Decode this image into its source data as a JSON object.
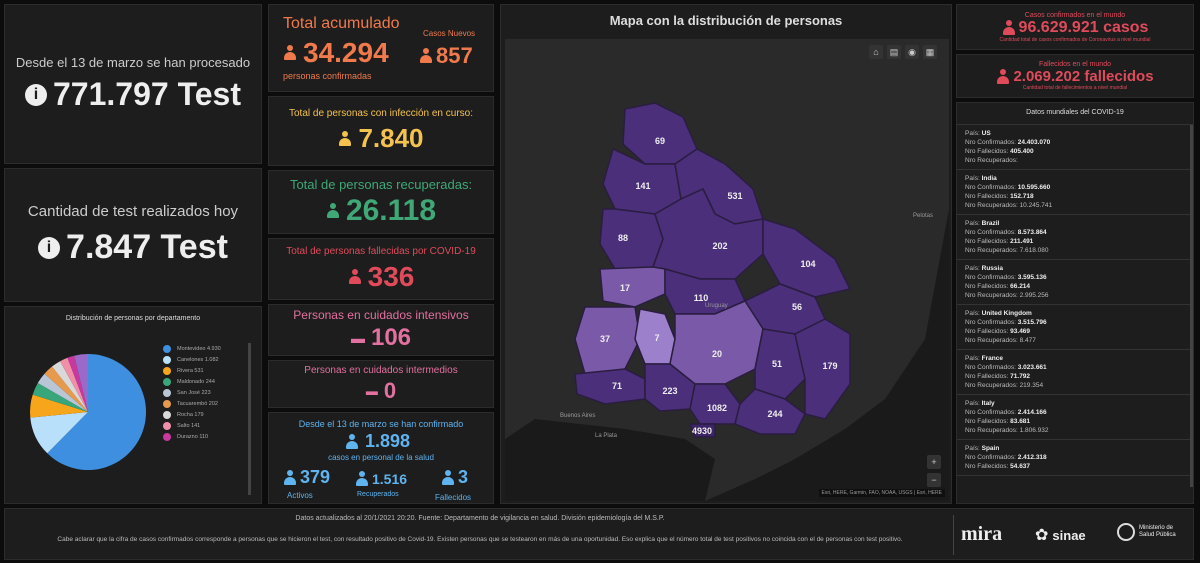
{
  "tests_total": {
    "caption": "Desde el 13 de marzo se han procesado",
    "value": "771.797 Test"
  },
  "tests_today": {
    "caption": "Cantidad de test realizados hoy",
    "value": "7.847 Test"
  },
  "pie": {
    "title": "Distribución de personas por departamento",
    "legend": [
      {
        "label": "Montevideo 4.930",
        "color": "#3f8fe0"
      },
      {
        "label": "Canelones 1.082",
        "color": "#b9e0fb"
      },
      {
        "label": "Rivera 531",
        "color": "#f7a51a"
      },
      {
        "label": "Maldonado 244",
        "color": "#37a67a"
      },
      {
        "label": "San José 223",
        "color": "#b9c6d6"
      },
      {
        "label": "Tacuarembó 202",
        "color": "#e79a4c"
      },
      {
        "label": "Rocha 179",
        "color": "#d9d9d9"
      },
      {
        "label": "Salto 141",
        "color": "#f08fa8"
      },
      {
        "label": "Durazno 110",
        "color": "#c8389e"
      }
    ]
  },
  "cumulative": {
    "title": "Total acumulado",
    "value": "34.294",
    "subtitle": "personas confirmadas",
    "new_label": "Casos Nuevos",
    "new_value": "857"
  },
  "active": {
    "title": "Total de personas con infección en curso:",
    "value": "7.840"
  },
  "recovered": {
    "title": "Total de personas recuperadas:",
    "value": "26.118"
  },
  "deaths": {
    "title": "Total de personas fallecidas por COVID-19",
    "value": "336"
  },
  "intensive": {
    "title": "Personas en cuidados intensivos",
    "value": "106"
  },
  "intermediate": {
    "title": "Personas en cuidados intermedios",
    "value": "0"
  },
  "health_staff": {
    "title": "Desde el 13 de marzo se han confirmado",
    "value": "1.898",
    "subtitle": "casos en personal de la salud",
    "active_value": "379",
    "active_label": "Activos",
    "recovered_value": "1.516",
    "recovered_label": "Recuperados",
    "deaths_value": "3",
    "deaths_label": "Fallecidos"
  },
  "map": {
    "title": "Mapa con la distribución de personas",
    "place_labels": [
      "Uruguay",
      "Buenos Aires",
      "La Plata",
      "Pelotas"
    ],
    "attribution": "Esri, HERE, Garmin, FAO, NOAA, USGS | Esri, HERE",
    "region_values": [
      "69",
      "141",
      "531",
      "88",
      "202",
      "104",
      "17",
      "110",
      "56",
      "37",
      "7",
      "20",
      "51",
      "179",
      "71",
      "223",
      "1082",
      "244",
      "4930"
    ]
  },
  "world_cases": {
    "title": "Casos confirmados en el mundo",
    "value": "96.629.921 casos",
    "subtitle": "Cantidad total de casos confirmados de Coronavirus a nivel mundial"
  },
  "world_deaths": {
    "title": "Fallecidos en el mundo",
    "value": "2.069.202 fallecidos",
    "subtitle": "Cantidad total de fallecimientos a nivel mundial"
  },
  "world_list": {
    "title": "Datos mundiales del COVID-19",
    "countries": [
      {
        "name": "US",
        "confirmed": "24.403.070",
        "deaths": "405.400",
        "recovered": ""
      },
      {
        "name": "India",
        "confirmed": "10.595.660",
        "deaths": "152.718",
        "recovered": "10.245.741"
      },
      {
        "name": "Brazil",
        "confirmed": "8.573.864",
        "deaths": "211.491",
        "recovered": "7.618.080"
      },
      {
        "name": "Russia",
        "confirmed": "3.595.136",
        "deaths": "66.214",
        "recovered": "2.995.256"
      },
      {
        "name": "United Kingdom",
        "confirmed": "3.515.796",
        "deaths": "93.469",
        "recovered": "8.477"
      },
      {
        "name": "France",
        "confirmed": "3.023.661",
        "deaths": "71.792",
        "recovered": "219.354"
      },
      {
        "name": "Italy",
        "confirmed": "2.414.166",
        "deaths": "83.681",
        "recovered": "1.806.932"
      },
      {
        "name": "Spain",
        "confirmed": "2.412.318",
        "deaths": "54.637",
        "recovered": ""
      }
    ]
  },
  "footer": {
    "line1": "Datos actualizados al 20/1/2021 20:20. Fuente: Departamento de vigilancia en salud. División epidemiología del M.S.P.",
    "line2": "Cabe aclarar que la cifra de casos confirmados corresponde a personas que se hicieron el test, con resultado positivo de Covid-19. Existen personas que se testearon en más de una oportunidad. Eso explica que el número total de test positivos no coincida con el de personas con test positivo.",
    "logo1": "mira",
    "logo2": "sinae",
    "logo3": "Ministerio de Salud Pública"
  }
}
